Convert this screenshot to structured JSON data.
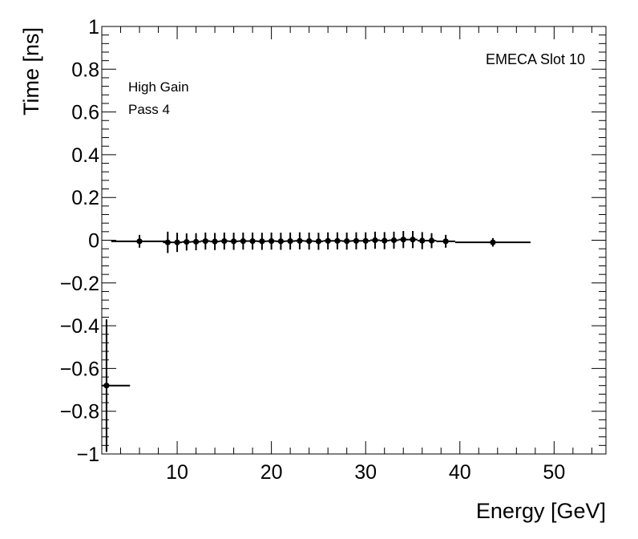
{
  "chart_data": {
    "type": "scatter",
    "title": "",
    "xlabel": "Energy [GeV]",
    "ylabel": "Time [ns]",
    "xlim": [
      2,
      55.5
    ],
    "ylim": [
      -1,
      1
    ],
    "x_ticks": [
      10,
      20,
      30,
      40,
      50
    ],
    "x_tick_labels": [
      "10",
      "20",
      "30",
      "40",
      "50"
    ],
    "y_ticks": [
      -1,
      -0.8,
      -0.6,
      -0.4,
      -0.2,
      0,
      0.2,
      0.4,
      0.6,
      0.8,
      1
    ],
    "y_tick_labels": [
      "−1",
      "−0.8",
      "−0.6",
      "−0.4",
      "−0.2",
      "0",
      "0.2",
      "0.4",
      "0.6",
      "0.8",
      "1"
    ],
    "annotations": [
      "High Gain",
      "Pass 4",
      "EMECA Slot 10"
    ],
    "grid": false,
    "series": [
      {
        "points": [
          {
            "x": 2.5,
            "y": -0.68,
            "xerr": [
              0.5,
              2.5
            ],
            "yerr": 0.31
          },
          {
            "x": 6,
            "y": -0.005,
            "xerr": [
              3,
              3
            ],
            "yerr": 0.03
          },
          {
            "x": 9,
            "y": -0.01,
            "xerr": [
              0.5,
              0.5
            ],
            "yerr": 0.05
          },
          {
            "x": 10,
            "y": -0.01,
            "xerr": [
              0.5,
              0.5
            ],
            "yerr": 0.045
          },
          {
            "x": 11,
            "y": -0.008,
            "xerr": [
              0.5,
              0.5
            ],
            "yerr": 0.04
          },
          {
            "x": 12,
            "y": -0.007,
            "xerr": [
              0.5,
              0.5
            ],
            "yerr": 0.04
          },
          {
            "x": 13,
            "y": -0.004,
            "xerr": [
              0.5,
              0.5
            ],
            "yerr": 0.04
          },
          {
            "x": 14,
            "y": -0.006,
            "xerr": [
              0.5,
              0.5
            ],
            "yerr": 0.04
          },
          {
            "x": 15,
            "y": -0.004,
            "xerr": [
              0.5,
              0.5
            ],
            "yerr": 0.04
          },
          {
            "x": 16,
            "y": -0.005,
            "xerr": [
              0.5,
              0.5
            ],
            "yerr": 0.04
          },
          {
            "x": 17,
            "y": -0.004,
            "xerr": [
              0.5,
              0.5
            ],
            "yerr": 0.04
          },
          {
            "x": 18,
            "y": -0.004,
            "xerr": [
              0.5,
              0.5
            ],
            "yerr": 0.04
          },
          {
            "x": 19,
            "y": -0.005,
            "xerr": [
              0.5,
              0.5
            ],
            "yerr": 0.04
          },
          {
            "x": 20,
            "y": -0.004,
            "xerr": [
              0.5,
              0.5
            ],
            "yerr": 0.04
          },
          {
            "x": 21,
            "y": -0.005,
            "xerr": [
              0.5,
              0.5
            ],
            "yerr": 0.04
          },
          {
            "x": 22,
            "y": -0.004,
            "xerr": [
              0.5,
              0.5
            ],
            "yerr": 0.04
          },
          {
            "x": 23,
            "y": -0.003,
            "xerr": [
              0.5,
              0.5
            ],
            "yerr": 0.04
          },
          {
            "x": 24,
            "y": -0.004,
            "xerr": [
              0.5,
              0.5
            ],
            "yerr": 0.04
          },
          {
            "x": 25,
            "y": -0.005,
            "xerr": [
              0.5,
              0.5
            ],
            "yerr": 0.04
          },
          {
            "x": 26,
            "y": -0.003,
            "xerr": [
              0.5,
              0.5
            ],
            "yerr": 0.04
          },
          {
            "x": 27,
            "y": -0.003,
            "xerr": [
              0.5,
              0.5
            ],
            "yerr": 0.04
          },
          {
            "x": 28,
            "y": -0.004,
            "xerr": [
              0.5,
              0.5
            ],
            "yerr": 0.04
          },
          {
            "x": 29,
            "y": -0.003,
            "xerr": [
              0.5,
              0.5
            ],
            "yerr": 0.04
          },
          {
            "x": 30,
            "y": -0.003,
            "xerr": [
              0.5,
              0.5
            ],
            "yerr": 0.04
          },
          {
            "x": 31,
            "y": 0.0,
            "xerr": [
              0.5,
              0.5
            ],
            "yerr": 0.04
          },
          {
            "x": 32,
            "y": -0.002,
            "xerr": [
              0.5,
              0.5
            ],
            "yerr": 0.04
          },
          {
            "x": 33,
            "y": 0.0,
            "xerr": [
              0.5,
              0.5
            ],
            "yerr": 0.04
          },
          {
            "x": 34,
            "y": 0.003,
            "xerr": [
              0.5,
              0.5
            ],
            "yerr": 0.04
          },
          {
            "x": 35,
            "y": 0.003,
            "xerr": [
              0.5,
              0.5
            ],
            "yerr": 0.04
          },
          {
            "x": 36,
            "y": -0.002,
            "xerr": [
              0.5,
              0.5
            ],
            "yerr": 0.04
          },
          {
            "x": 37,
            "y": -0.002,
            "xerr": [
              0.5,
              0.5
            ],
            "yerr": 0.035
          },
          {
            "x": 38.5,
            "y": -0.005,
            "xerr": [
              1,
              1
            ],
            "yerr": 0.03
          },
          {
            "x": 43.5,
            "y": -0.01,
            "xerr": [
              4,
              4
            ],
            "yerr": 0.02
          }
        ]
      }
    ]
  }
}
